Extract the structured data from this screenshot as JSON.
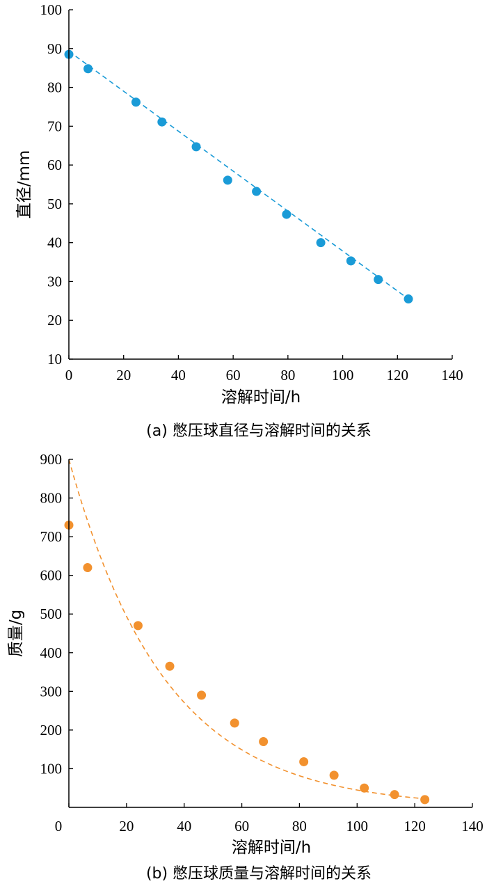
{
  "chart_data": [
    {
      "type": "scatter",
      "xlabel": "溶解时间/h",
      "ylabel": "直径/mm",
      "caption": "(a) 憋压球直径与溶解时间的关系",
      "xlim": [
        0,
        140
      ],
      "ylim": [
        10,
        100
      ],
      "xticks": [
        "0",
        "20",
        "40",
        "60",
        "80",
        "100",
        "120",
        "140"
      ],
      "yticks": [
        "10",
        "20",
        "30",
        "40",
        "50",
        "60",
        "70",
        "80",
        "90",
        "100"
      ],
      "color": "#1a9bd7",
      "points": [
        [
          0,
          88.5
        ],
        [
          7,
          84.8
        ],
        [
          24.5,
          76.2
        ],
        [
          34,
          71.1
        ],
        [
          46.5,
          64.7
        ],
        [
          58,
          56.1
        ],
        [
          68.5,
          53.2
        ],
        [
          79.5,
          47.3
        ],
        [
          92,
          40.0
        ],
        [
          103,
          35.3
        ],
        [
          113,
          30.5
        ],
        [
          124,
          25.5
        ]
      ],
      "fit": {
        "kind": "linear",
        "x": [
          0,
          124
        ],
        "y": [
          89.3,
          25.5
        ]
      },
      "grid": false
    },
    {
      "type": "scatter",
      "xlabel": "溶解时间/h",
      "ylabel": "质量/g",
      "caption": "(b) 憋压球质量与溶解时间的关系",
      "xlim": [
        0,
        140
      ],
      "ylim": [
        0,
        900
      ],
      "xticks": [
        "0",
        "20",
        "40",
        "60",
        "80",
        "100",
        "120",
        "140"
      ],
      "yticks": [
        "100",
        "200",
        "300",
        "400",
        "500",
        "600",
        "700",
        "800",
        "900"
      ],
      "color": "#f2912e",
      "points": [
        [
          0,
          730
        ],
        [
          6.5,
          620
        ],
        [
          24,
          470
        ],
        [
          35,
          365
        ],
        [
          46,
          290
        ],
        [
          57.5,
          218
        ],
        [
          67.5,
          170
        ],
        [
          81.5,
          118
        ],
        [
          92,
          83
        ],
        [
          102.5,
          50
        ],
        [
          113,
          33
        ],
        [
          123.5,
          20
        ]
      ],
      "fit": {
        "kind": "exponential",
        "a": 900,
        "b": 0.03,
        "x": [
          0,
          123.5
        ]
      },
      "grid": false
    }
  ]
}
